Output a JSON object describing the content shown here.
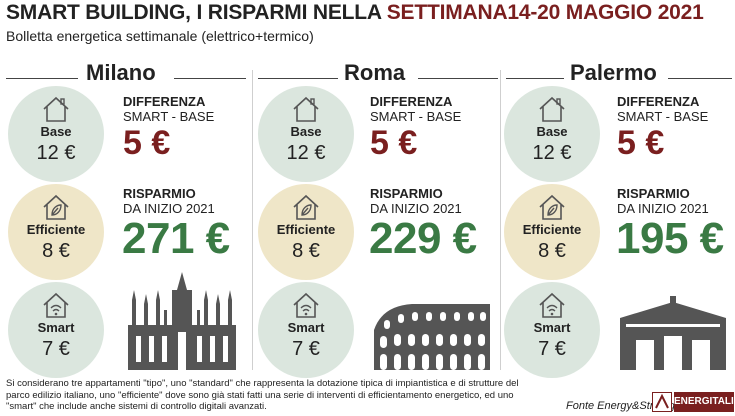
{
  "header": {
    "title_main": "SMART BUILDING, I RISPARMI NELLA ",
    "title_highlight": "SETTIMANA14-20 MAGGIO 2021",
    "subtitle": "Bolletta energetica settimanale (elettrico+termico)"
  },
  "labels": {
    "diff_title": "DIFFERENZA",
    "diff_sub": "SMART - BASE",
    "savings_title": "RISPARMIO",
    "savings_sub": "DA INIZIO 2021"
  },
  "cities": [
    {
      "name": "Milano",
      "base_label": "Base",
      "base_value": "12 €",
      "eff_label": "Efficiente",
      "eff_value": "8 €",
      "smart_label": "Smart",
      "smart_value": "7 €",
      "difference": "5 €",
      "savings": "271 €"
    },
    {
      "name": "Roma",
      "base_label": "Base",
      "base_value": "12 €",
      "eff_label": "Efficiente",
      "eff_value": "8 €",
      "smart_label": "Smart",
      "smart_value": "7 €",
      "difference": "5 €",
      "savings": "229 €"
    },
    {
      "name": "Palermo",
      "base_label": "Base",
      "base_value": "12 €",
      "eff_label": "Efficiente",
      "eff_value": "8 €",
      "smart_label": "Smart",
      "smart_value": "7 €",
      "difference": "5 €",
      "savings": "195 €"
    }
  ],
  "footer": {
    "note": "Si considerano tre appartamenti \"tipo\", uno \"standard\" che rappresenta la dotazione tipica di impiantistica e di strutture del parco edilizio italiano, uno \"efficiente\" dove sono già stati fatti una serie di interventi di efficientamento energetico, ed uno \"smart\" che include anche sistemi di controllo digitali avanzati.",
    "source": "Fonte Energy&Strategy",
    "logo": "ENERGITALIA"
  },
  "colors": {
    "accent_red": "#7a1f1f",
    "accent_green": "#3a7a44",
    "circle_green": "#dbe6de",
    "circle_beige": "#efe6c8"
  },
  "icons": [
    "house-icon",
    "house-leaf-icon",
    "house-wifi-icon",
    "milan-cathedral-icon",
    "colosseum-icon",
    "palermo-gate-icon"
  ]
}
